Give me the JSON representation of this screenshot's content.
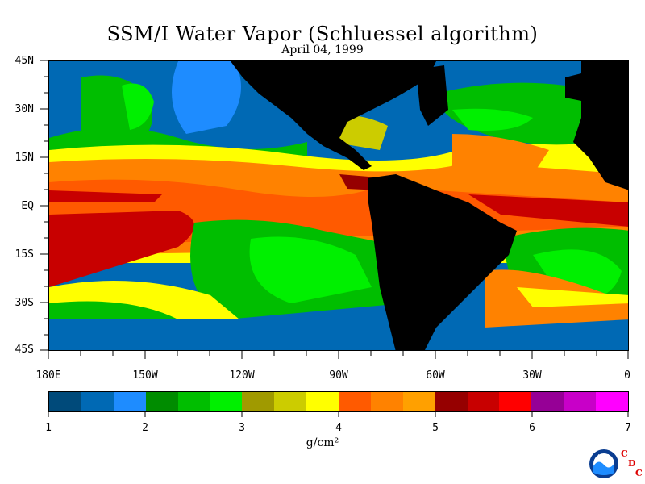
{
  "title": "SSM/I Water Vapor (Schluessel algorithm)",
  "date": "April 04, 1999",
  "lat_labels": [
    "45N",
    "30N",
    "15N",
    "EQ",
    "15S",
    "30S",
    "45S"
  ],
  "lon_labels": [
    "180E",
    "150W",
    "120W",
    "90W",
    "60W",
    "30W",
    "0"
  ],
  "colorbar": {
    "colors": [
      "#004a7a",
      "#0069b4",
      "#1e8cff",
      "#008c00",
      "#00be00",
      "#00f000",
      "#a09a00",
      "#cccc00",
      "#ffff00",
      "#ff5a00",
      "#ff8200",
      "#ffa000",
      "#960000",
      "#c80000",
      "#ff0000",
      "#960096",
      "#c800c8",
      "#ff00ff"
    ],
    "ticks": [
      "1",
      "2",
      "3",
      "4",
      "5",
      "6",
      "7"
    ],
    "unit": "g/cm²"
  },
  "logo": {
    "noaa": "NOAA",
    "c": "C",
    "d": "D",
    "c2": "C"
  }
}
